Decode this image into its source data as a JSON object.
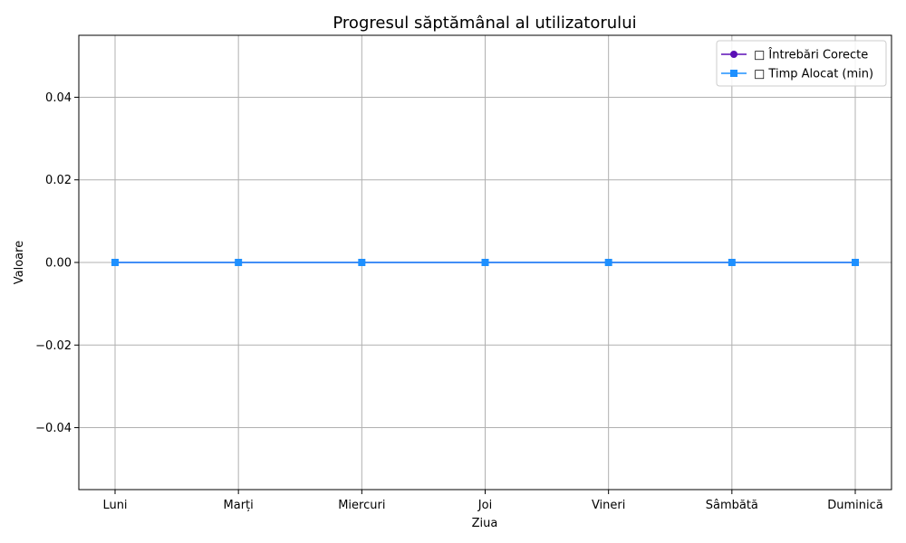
{
  "chart_data": {
    "type": "line",
    "title": "Progresul săptămânal al utilizatorului",
    "xlabel": "Ziua",
    "ylabel": "Valoare",
    "categories": [
      "Luni",
      "Marți",
      "Miercuri",
      "Joi",
      "Vineri",
      "Sâmbătă",
      "Duminică"
    ],
    "ylim": [
      -0.055,
      0.055
    ],
    "yticks": [
      -0.04,
      -0.02,
      0.0,
      0.02,
      0.04
    ],
    "ytick_labels": [
      "−0.04",
      "−0.02",
      "0.00",
      "0.02",
      "0.04"
    ],
    "grid": true,
    "legend_position": "top-right",
    "series": [
      {
        "name": "Întrebări Corecte",
        "legend_label": "□ Întrebări Corecte",
        "values": [
          0,
          0,
          0,
          0,
          0,
          0,
          0
        ],
        "color": "#5b0fb5",
        "marker": "circle"
      },
      {
        "name": "Timp Alocat (min)",
        "legend_label": "□ Timp Alocat (min)",
        "values": [
          0,
          0,
          0,
          0,
          0,
          0,
          0
        ],
        "color": "#1e90ff",
        "marker": "square"
      }
    ]
  }
}
